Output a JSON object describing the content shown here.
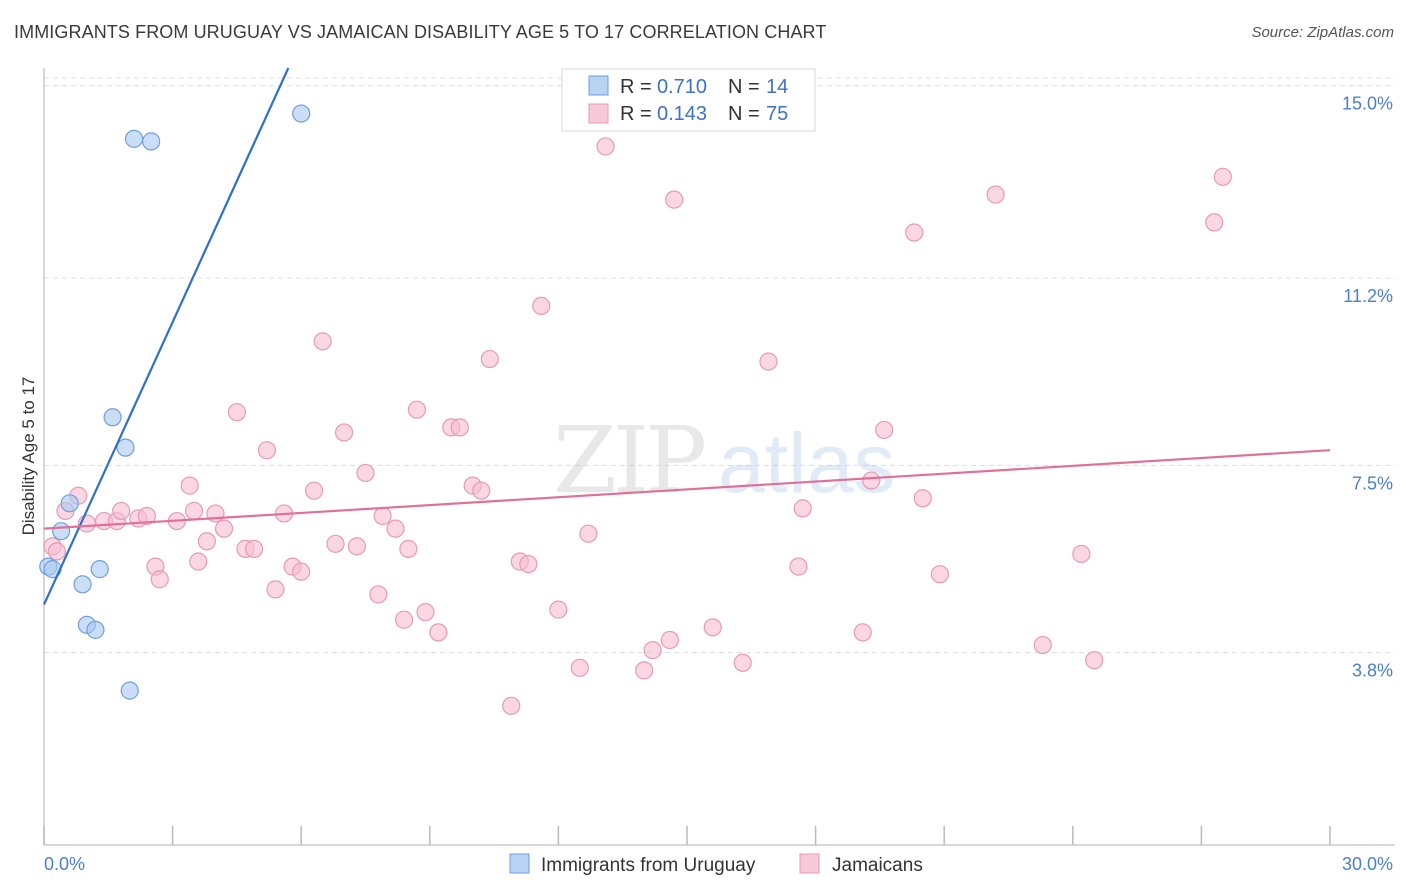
{
  "title": "IMMIGRANTS FROM URUGUAY VS JAMAICAN DISABILITY AGE 5 TO 17 CORRELATION CHART",
  "source": "Source: ZipAtlas.com",
  "watermark": {
    "zip": "ZIP",
    "atlas": "atlas"
  },
  "colors": {
    "blue": "#a9c8f2",
    "blue_line": "#2f6fcc",
    "pink": "#f6bcd0",
    "pink_line": "#e0709a",
    "grid": "#dddddd",
    "tick_label": "#4a7fcf"
  },
  "legend": {
    "rows": [
      {
        "r_label": "R = ",
        "r_value": "0.710",
        "n_label": "N = ",
        "n_value": "14"
      },
      {
        "r_label": "R = ",
        "r_value": "0.143",
        "n_label": "N = ",
        "n_value": "75"
      }
    ]
  },
  "chart_data": {
    "type": "scatter",
    "xlabel": "",
    "ylabel": "Disability Age 5 to 17",
    "xlim": [
      0,
      30
    ],
    "ylim": [
      0,
      15.35
    ],
    "x_tick_labels": [
      "0.0%",
      "30.0%"
    ],
    "y_ticks": [
      {
        "value": 3.8,
        "label": "3.8%"
      },
      {
        "value": 7.5,
        "label": "7.5%"
      },
      {
        "value": 11.2,
        "label": "11.2%"
      },
      {
        "value": 15.0,
        "label": "15.0%"
      }
    ],
    "grid": "horizontal-dashed",
    "legend_placement": "top-center",
    "series": [
      {
        "name": "Immigrants from Uruguay",
        "color": "#a9c8f2",
        "stroke": "#6f9fdc",
        "trend": {
          "x0": 0,
          "y0": 4.75,
          "x1": 5.7,
          "y1": 15.35
        },
        "points": [
          [
            0.1,
            5.5
          ],
          [
            0.2,
            5.45
          ],
          [
            0.4,
            6.2
          ],
          [
            0.6,
            6.75
          ],
          [
            0.9,
            5.15
          ],
          [
            1.0,
            4.35
          ],
          [
            1.2,
            4.25
          ],
          [
            1.3,
            5.45
          ],
          [
            1.6,
            8.45
          ],
          [
            1.9,
            7.85
          ],
          [
            2.0,
            3.05
          ],
          [
            2.1,
            13.95
          ],
          [
            2.5,
            13.9
          ],
          [
            6.0,
            14.45
          ]
        ]
      },
      {
        "name": "Jamaicans",
        "color": "#f6bcd0",
        "stroke": "#e79ab6",
        "trend": {
          "x0": 0,
          "y0": 6.25,
          "x1": 30,
          "y1": 7.8
        },
        "points": [
          [
            0.2,
            5.9
          ],
          [
            0.3,
            5.8
          ],
          [
            0.5,
            6.6
          ],
          [
            0.8,
            6.9
          ],
          [
            1.0,
            6.35
          ],
          [
            1.4,
            6.4
          ],
          [
            1.7,
            6.4
          ],
          [
            1.8,
            6.6
          ],
          [
            2.2,
            6.45
          ],
          [
            2.4,
            6.5
          ],
          [
            2.6,
            5.5
          ],
          [
            2.7,
            5.25
          ],
          [
            3.1,
            6.4
          ],
          [
            3.4,
            7.1
          ],
          [
            3.5,
            6.6
          ],
          [
            3.6,
            5.6
          ],
          [
            3.8,
            6.0
          ],
          [
            4.0,
            6.55
          ],
          [
            4.2,
            6.25
          ],
          [
            4.5,
            8.55
          ],
          [
            4.7,
            5.85
          ],
          [
            4.9,
            5.85
          ],
          [
            5.2,
            7.8
          ],
          [
            5.4,
            5.05
          ],
          [
            5.6,
            6.55
          ],
          [
            5.8,
            5.5
          ],
          [
            6.0,
            5.4
          ],
          [
            6.3,
            7.0
          ],
          [
            6.5,
            9.95
          ],
          [
            6.8,
            5.95
          ],
          [
            7.0,
            8.15
          ],
          [
            7.3,
            5.9
          ],
          [
            7.5,
            7.35
          ],
          [
            7.8,
            4.95
          ],
          [
            7.9,
            6.5
          ],
          [
            8.2,
            6.25
          ],
          [
            8.4,
            4.45
          ],
          [
            8.5,
            5.85
          ],
          [
            8.7,
            8.6
          ],
          [
            8.9,
            4.6
          ],
          [
            9.2,
            4.2
          ],
          [
            9.5,
            8.25
          ],
          [
            9.7,
            8.25
          ],
          [
            10.0,
            7.1
          ],
          [
            10.2,
            7.0
          ],
          [
            10.4,
            9.6
          ],
          [
            10.9,
            2.75
          ],
          [
            11.1,
            5.6
          ],
          [
            11.3,
            5.55
          ],
          [
            11.6,
            10.65
          ],
          [
            12.0,
            4.65
          ],
          [
            12.5,
            3.5
          ],
          [
            12.7,
            6.15
          ],
          [
            13.1,
            13.8
          ],
          [
            14.0,
            3.45
          ],
          [
            14.2,
            3.85
          ],
          [
            14.6,
            4.05
          ],
          [
            14.7,
            12.75
          ],
          [
            15.6,
            4.3
          ],
          [
            16.3,
            3.6
          ],
          [
            16.9,
            9.55
          ],
          [
            17.6,
            5.5
          ],
          [
            17.7,
            6.65
          ],
          [
            19.1,
            4.2
          ],
          [
            19.3,
            7.2
          ],
          [
            19.6,
            8.2
          ],
          [
            20.3,
            12.1
          ],
          [
            20.5,
            6.85
          ],
          [
            20.9,
            5.35
          ],
          [
            22.2,
            12.85
          ],
          [
            23.3,
            3.95
          ],
          [
            24.2,
            5.75
          ],
          [
            24.5,
            3.65
          ],
          [
            27.3,
            12.3
          ],
          [
            27.5,
            13.2
          ]
        ]
      }
    ]
  },
  "bottom_legend": [
    {
      "label": "Immigrants from Uruguay"
    },
    {
      "label": "Jamaicans"
    }
  ]
}
